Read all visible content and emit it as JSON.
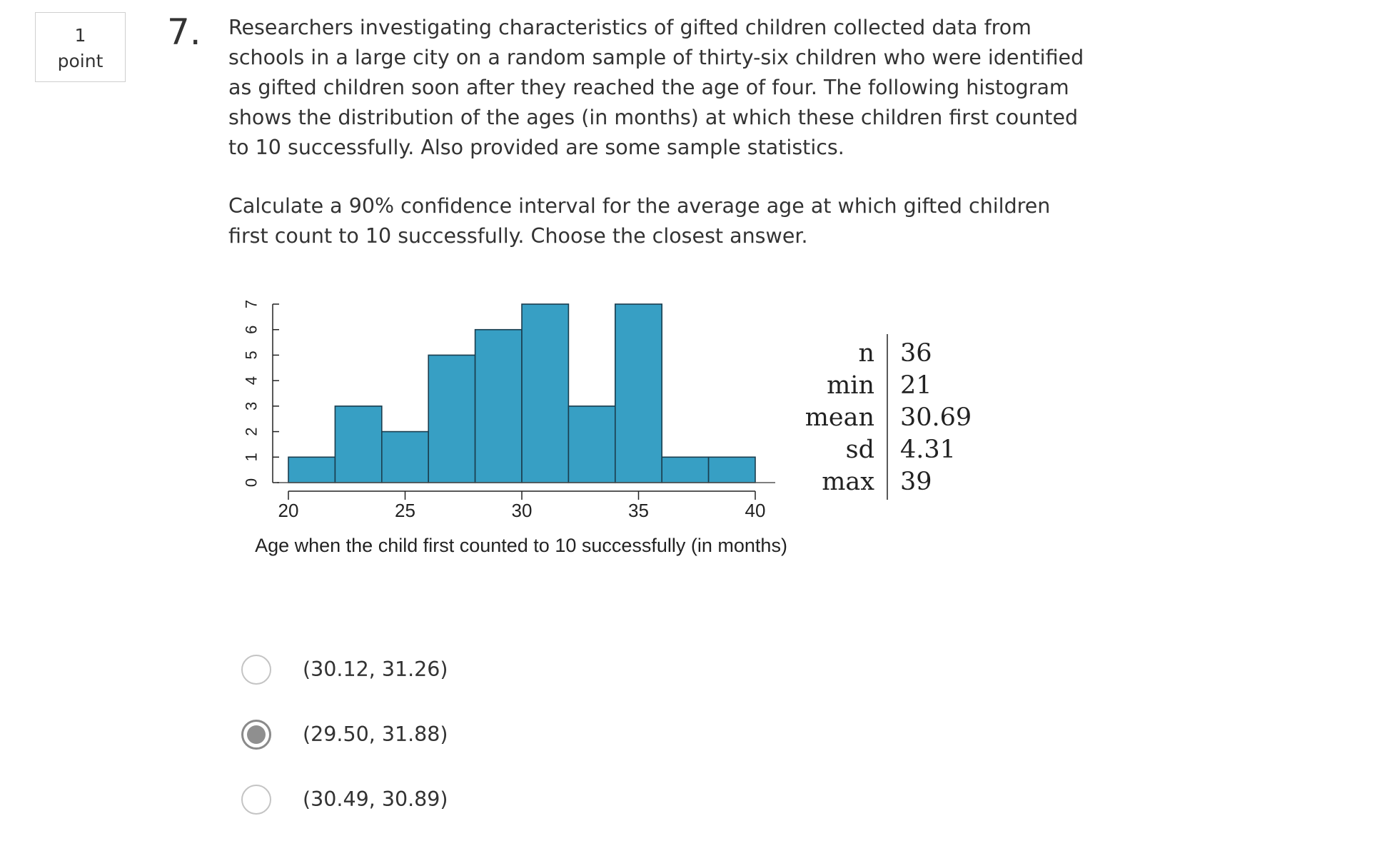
{
  "points": {
    "value": "1",
    "unit": "point"
  },
  "question": {
    "number": "7.",
    "text": "Researchers investigating characteristics of gifted children collected data from schools in a large city on a random sample of thirty-six children who were identified as gifted children soon after they reached the age of four. The following histogram shows the distribution of the ages (in months) at which these children first counted to 10 successfully. Also provided are some sample statistics.",
    "ask": "Calculate a 90% confidence interval for the average age at which gifted children first count to 10 successfully. Choose the closest answer."
  },
  "chart_data": {
    "type": "bar",
    "bin_edges": [
      20,
      22,
      24,
      26,
      28,
      30,
      32,
      34,
      36,
      38,
      40
    ],
    "values": [
      1,
      3,
      2,
      5,
      6,
      7,
      3,
      7,
      1,
      1
    ],
    "xticks": [
      20,
      25,
      30,
      35,
      40
    ],
    "yticks": [
      0,
      1,
      2,
      3,
      4,
      5,
      6,
      7
    ],
    "xlim": [
      20,
      40
    ],
    "ylim": [
      0,
      7
    ],
    "xlabel": "Age when the child first counted to 10 successfully (in months)",
    "ylabel": "",
    "bar_color": "#379fc4",
    "edge_color": "#1a3d4e"
  },
  "stats": [
    {
      "label": "n",
      "value": "36"
    },
    {
      "label": "min",
      "value": "21"
    },
    {
      "label": "mean",
      "value": "30.69"
    },
    {
      "label": "sd",
      "value": "4.31"
    },
    {
      "label": "max",
      "value": "39"
    }
  ],
  "options": [
    {
      "label": "(30.12, 31.26)",
      "selected": false
    },
    {
      "label": "(29.50, 31.88)",
      "selected": true
    },
    {
      "label": "(30.49, 30.89)",
      "selected": false
    }
  ]
}
